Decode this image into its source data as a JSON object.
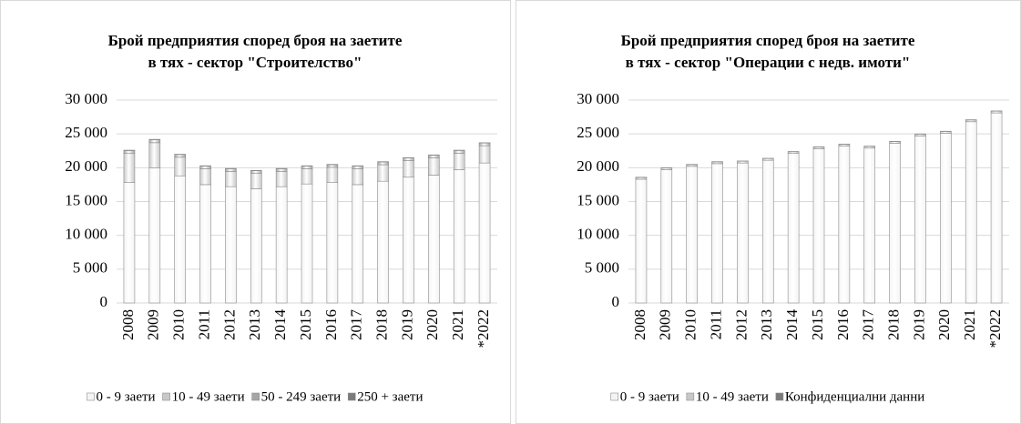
{
  "chart_data": [
    {
      "type": "bar",
      "stacked": true,
      "title": [
        "Брой предприятия според броя на заетите",
        "в тях - сектор \"Строителство\""
      ],
      "categories": [
        "2008",
        "2009",
        "2010",
        "2011",
        "2012",
        "2013",
        "2014",
        "2015",
        "2016",
        "2017",
        "2018",
        "2019",
        "2020",
        "2021",
        "*2022"
      ],
      "series": [
        {
          "name": "0 - 9 заети",
          "color": "#f4f4f4",
          "values": [
            17800,
            20000,
            18800,
            17500,
            17200,
            16900,
            17200,
            17600,
            17800,
            17500,
            18000,
            18600,
            18900,
            19700,
            20700
          ]
        },
        {
          "name": "10 - 49 заети",
          "color": "#c8c8c8",
          "values": [
            4300,
            3700,
            2750,
            2350,
            2250,
            2250,
            2250,
            2250,
            2250,
            2350,
            2450,
            2450,
            2550,
            2450,
            2550
          ]
        },
        {
          "name": "50 - 249 заети",
          "color": "#a6a6a6",
          "values": [
            440,
            440,
            400,
            400,
            400,
            400,
            400,
            400,
            400,
            400,
            400,
            400,
            400,
            400,
            400
          ]
        },
        {
          "name": "250 + заети",
          "color": "#7a7a7a",
          "values": [
            60,
            60,
            50,
            50,
            50,
            50,
            50,
            50,
            50,
            50,
            50,
            50,
            50,
            50,
            50
          ]
        }
      ],
      "ylim": [
        0,
        30000
      ],
      "yticks": [
        0,
        {
          "value": 5000,
          "label": "5 000"
        },
        {
          "value": 10000,
          "label": "10 000"
        },
        {
          "value": 15000,
          "label": "15 000"
        },
        {
          "value": 20000,
          "label": "20 000"
        },
        {
          "value": 25000,
          "label": "25 000"
        },
        {
          "value": 30000,
          "label": "30 000"
        }
      ],
      "grid": true,
      "legend": "bottom"
    },
    {
      "type": "bar",
      "stacked": true,
      "title": [
        "Брой предприятия според броя на заетите",
        "в тях - сектор \"Операции с недв. имоти\""
      ],
      "categories": [
        "2008",
        "2009",
        "2010",
        "2011",
        "2012",
        "2013",
        "2014",
        "2015",
        "2016",
        "2017",
        "2018",
        "2019",
        "2020",
        "2021",
        "*2022"
      ],
      "series": [
        {
          "name": "0 - 9 заети",
          "color": "#f4f4f4",
          "values": [
            18300,
            19700,
            20200,
            20600,
            20700,
            21100,
            22100,
            22800,
            23200,
            22900,
            23600,
            24700,
            25100,
            26800,
            28100
          ]
        },
        {
          "name": "10 - 49 заети",
          "color": "#c8c8c8",
          "values": [
            260,
            260,
            260,
            260,
            260,
            260,
            260,
            260,
            260,
            260,
            260,
            260,
            260,
            260,
            260
          ]
        },
        {
          "name": "Конфиденциални данни",
          "color": "#7a7a7a",
          "values": [
            40,
            40,
            40,
            40,
            40,
            40,
            40,
            40,
            40,
            40,
            40,
            40,
            40,
            40,
            40
          ]
        }
      ],
      "ylim": [
        0,
        30000
      ],
      "yticks": [
        0,
        {
          "value": 5000,
          "label": "5 000"
        },
        {
          "value": 10000,
          "label": "10 000"
        },
        {
          "value": 15000,
          "label": "15 000"
        },
        {
          "value": 20000,
          "label": "20 000"
        },
        {
          "value": 25000,
          "label": "25 000"
        },
        {
          "value": 30000,
          "label": "30 000"
        }
      ],
      "grid": true,
      "legend": "bottom"
    }
  ]
}
